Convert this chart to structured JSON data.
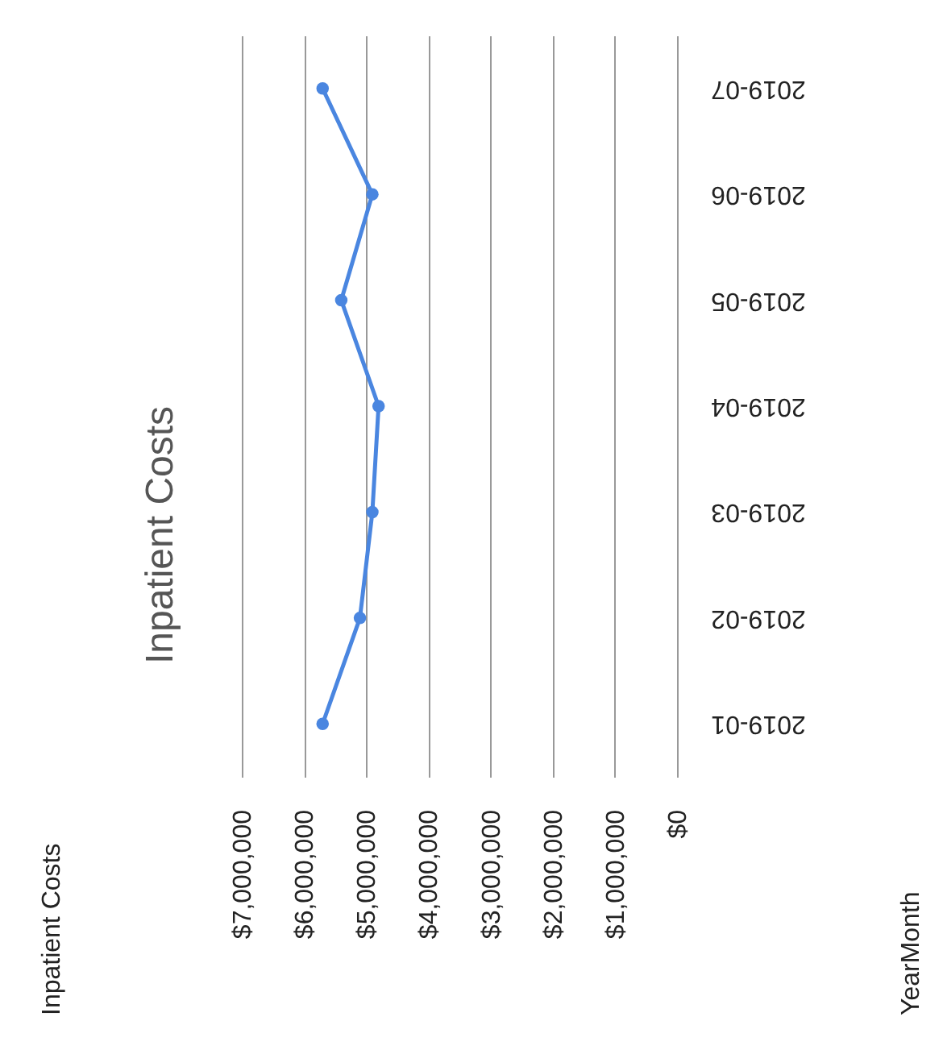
{
  "chart_data": {
    "type": "line",
    "title": "Inpatient Costs",
    "orientation": "horizontal",
    "categories": [
      "2019-07",
      "2019-06",
      "2019-05",
      "2019-04",
      "2019-03",
      "2019-02",
      "2019-01"
    ],
    "series": [
      {
        "color": "#4a86e0",
        "values": [
          5700000,
          4900000,
          5400000,
          4800000,
          4900000,
          5100000,
          5700000
        ]
      }
    ],
    "xlim": [
      7000000,
      0
    ],
    "xticks": [
      {
        "value": 7000000,
        "label": "$7,000,000"
      },
      {
        "value": 6000000,
        "label": "$6,000,000"
      },
      {
        "value": 5000000,
        "label": "$5,000,000"
      },
      {
        "value": 4000000,
        "label": "$4,000,000"
      },
      {
        "value": 3000000,
        "label": "$3,000,000"
      },
      {
        "value": 2000000,
        "label": "$2,000,000"
      },
      {
        "value": 1000000,
        "label": "$1,000,000"
      },
      {
        "value": 0,
        "label": "$0"
      }
    ],
    "grid": "x",
    "marker": "circle",
    "annotations": [
      "Inpatient Costs",
      "YearMonth"
    ]
  }
}
